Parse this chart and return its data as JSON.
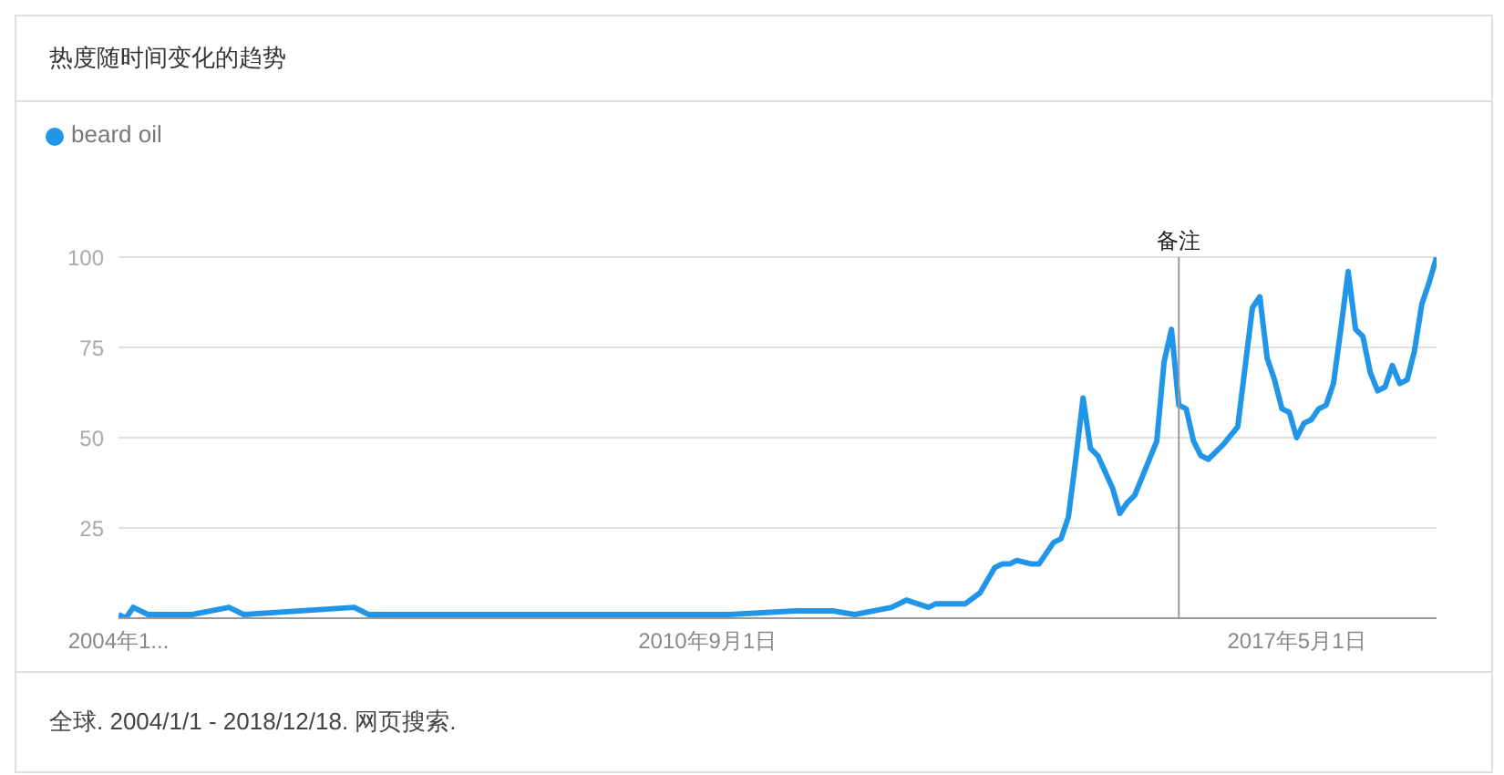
{
  "chart_data": {
    "type": "line",
    "title": "热度随时间变化的趋势",
    "x": [
      "2004-01",
      "2004-02",
      "2004-03",
      "2004-05",
      "2004-11",
      "2005-04",
      "2005-06",
      "2006-09",
      "2006-11",
      "2009-01",
      "2010-12",
      "2011-09",
      "2012-02",
      "2012-05",
      "2012-10",
      "2012-12",
      "2013-03",
      "2013-04",
      "2013-08",
      "2013-10",
      "2013-12",
      "2014-01",
      "2014-02",
      "2014-03",
      "2014-05",
      "2014-06",
      "2014-08",
      "2014-09",
      "2014-10",
      "2014-11",
      "2014-12",
      "2015-01",
      "2015-02",
      "2015-04",
      "2015-05",
      "2015-06",
      "2015-07",
      "2015-08",
      "2015-09",
      "2015-10",
      "2015-11",
      "2015-12",
      "2016-01",
      "2016-02",
      "2016-03",
      "2016-04",
      "2016-05",
      "2016-06",
      "2016-07",
      "2016-09",
      "2016-11",
      "2016-12",
      "2017-01",
      "2017-02",
      "2017-03",
      "2017-04",
      "2017-05",
      "2017-06",
      "2017-07",
      "2017-08",
      "2017-09",
      "2017-10",
      "2017-11",
      "2017-12",
      "2018-01",
      "2018-02",
      "2018-03",
      "2018-04",
      "2018-05",
      "2018-06",
      "2018-07",
      "2018-08",
      "2018-09",
      "2018-10",
      "2018-11",
      "2018-12"
    ],
    "series": [
      {
        "name": "beard oil",
        "color": "#2196e8",
        "values": [
          1,
          0,
          3,
          1,
          1,
          3,
          1,
          3,
          1,
          1,
          1,
          2,
          2,
          1,
          3,
          5,
          3,
          4,
          4,
          7,
          14,
          15,
          15,
          16,
          15,
          15,
          21,
          22,
          28,
          44,
          61,
          47,
          45,
          36,
          29,
          32,
          34,
          39,
          44,
          49,
          71,
          80,
          59,
          58,
          49,
          45,
          44,
          46,
          48,
          53,
          86,
          89,
          72,
          66,
          58,
          57,
          50,
          54,
          55,
          58,
          59,
          65,
          80,
          96,
          80,
          78,
          68,
          63,
          64,
          70,
          65,
          66,
          74,
          87,
          93,
          100
        ]
      }
    ],
    "xlim": [
      "2004-01",
      "2018-12"
    ],
    "xticks": [
      {
        "value": "2004-01",
        "label": "2004年1..."
      },
      {
        "value": "2010-09",
        "label": "2010年9月1日"
      },
      {
        "value": "2017-05",
        "label": "2017年5月1日"
      }
    ],
    "ylim": [
      0,
      100
    ],
    "yticks": [
      25,
      50,
      75,
      100
    ],
    "grid": "y",
    "legend": "top left",
    "marker": "none",
    "line_style": "solid",
    "annotations": [
      {
        "text": "备注",
        "x": "2016-01"
      },
      "全球. 2004/1/1 - 2018/12/18. 网页搜索."
    ]
  }
}
